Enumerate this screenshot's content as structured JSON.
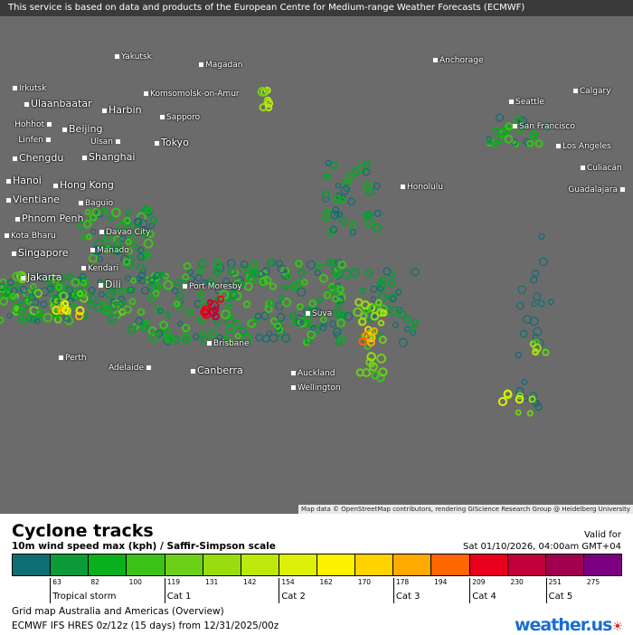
{
  "header": {
    "notice": "This service is based on data and products of the European Centre for Medium-range Weather Forecasts (ECMWF)"
  },
  "map": {
    "attribution": "Map data © OpenStreetMap contributors, rendering GIScience Research Group @ Heidelberg University",
    "background_color": "#6b6b6b",
    "cities": [
      "Yakutsk",
      "Magadan",
      "Anchorage",
      "Irkutsk",
      "Ulaanbaatar",
      "Komsomolsk-on-Amur",
      "Harbin",
      "Sapporo",
      "Seattle",
      "Calgary",
      "Hohhot",
      "Beijing",
      "San Francisco",
      "Linfen",
      "Ulsan",
      "Tokyo",
      "Los Angeles",
      "Chengdu",
      "Shanghai",
      "Culiacán",
      "Hanoi",
      "Hong Kong",
      "Honolulu",
      "Guadalajara",
      "Vientiane",
      "Baguio",
      "Phnom Penh",
      "Davao City",
      "Kota Bharu",
      "Manado",
      "Singapore",
      "Kendari",
      "Jakarta",
      "Dili",
      "Port Moresby",
      "Suva",
      "Brisbane",
      "Perth",
      "Adelaide",
      "Canberra",
      "Auckland",
      "Wellington"
    ]
  },
  "legend": {
    "title": "Cyclone tracks",
    "subtitle": "10m wind speed max (kph) / Saffir-Simpson scale",
    "valid_label": "Valid for",
    "valid_date": "Sat 01/10/2026, 04:00am GMT+04",
    "colors": [
      "#0f6e73",
      "#0f9a3a",
      "#0aaf1e",
      "#3dc21a",
      "#6ccf1a",
      "#98dd10",
      "#bde80c",
      "#dcf00a",
      "#fff200",
      "#ffd200",
      "#ffaa00",
      "#ff6600",
      "#e8001c",
      "#c0003a",
      "#a0004e",
      "#7a0080"
    ],
    "ticks": [
      "63",
      "82",
      "100",
      "119",
      "131",
      "142",
      "154",
      "162",
      "170",
      "178",
      "194",
      "209",
      "230",
      "251",
      "275"
    ],
    "categories": [
      "Tropical storm",
      "Cat 1",
      "Cat 2",
      "Cat 3",
      "Cat 4",
      "Cat 5"
    ],
    "grid": "Grid map Australia and Americas (Overview)",
    "model": "ECMWF IFS HRES 0z/12z (15 days) from  12/31/2025/00z",
    "logo": "weather.us"
  }
}
